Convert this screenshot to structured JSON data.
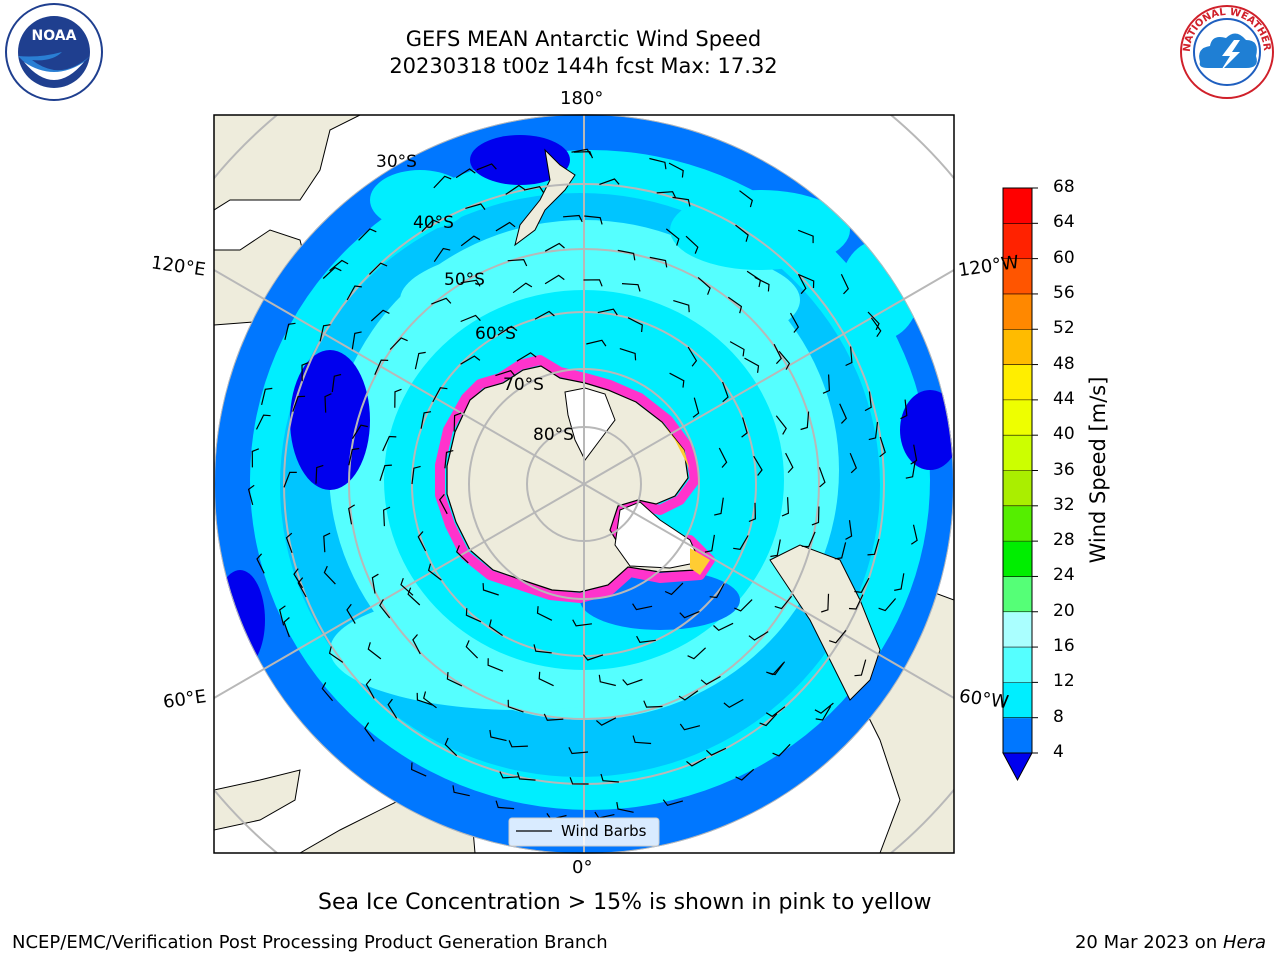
{
  "header": {
    "title_line1": "GEFS MEAN Antarctic Wind Speed",
    "title_line2": "20230318 t00z 144h fcst   Max: 17.32"
  },
  "logos": {
    "noaa": {
      "text": "NOAA",
      "color": "#1f3f8f"
    },
    "nws": {
      "text": "NATIONAL WEATHER SERVICE",
      "color": "#d0202a"
    }
  },
  "map": {
    "projection": "south-polar-stereographic",
    "longitude_labels": {
      "top": "180°",
      "left_upper": "120°E",
      "right_upper": "120°W",
      "left_lower": "60°E",
      "right_lower": "60°W",
      "bottom": "0°"
    },
    "latitude_labels": [
      "30°S",
      "40°S",
      "50°S",
      "60°S",
      "70°S",
      "80°S"
    ],
    "legend": {
      "label": "Wind Barbs"
    },
    "sea_ice_colors": [
      "#ff33cc",
      "#ff99ee",
      "#ffcc33"
    ],
    "land_color": "#eeecdc",
    "ice_shelf_color": "#ffffff"
  },
  "colorbar": {
    "label": "Wind Speed [m/s]",
    "ticks": [
      "4",
      "8",
      "12",
      "16",
      "20",
      "24",
      "28",
      "32",
      "36",
      "40",
      "44",
      "48",
      "52",
      "56",
      "60",
      "64",
      "68"
    ],
    "colors": [
      "#0000ee",
      "#0077ff",
      "#00eeff",
      "#55ffff",
      "#aaffff",
      "#55ff77",
      "#00ee00",
      "#55ee00",
      "#aaee00",
      "#ccff00",
      "#eeff00",
      "#ffee00",
      "#ffbb00",
      "#ff8800",
      "#ff5500",
      "#ff2200",
      "#ff0000"
    ]
  },
  "footnote": "Sea Ice Concentration > 15% is shown in pink to yellow",
  "credits": {
    "left": "NCEP/EMC/Verification Post Processing Product Generation Branch",
    "right_date": "20 Mar 2023 on ",
    "right_host": "Hera"
  }
}
